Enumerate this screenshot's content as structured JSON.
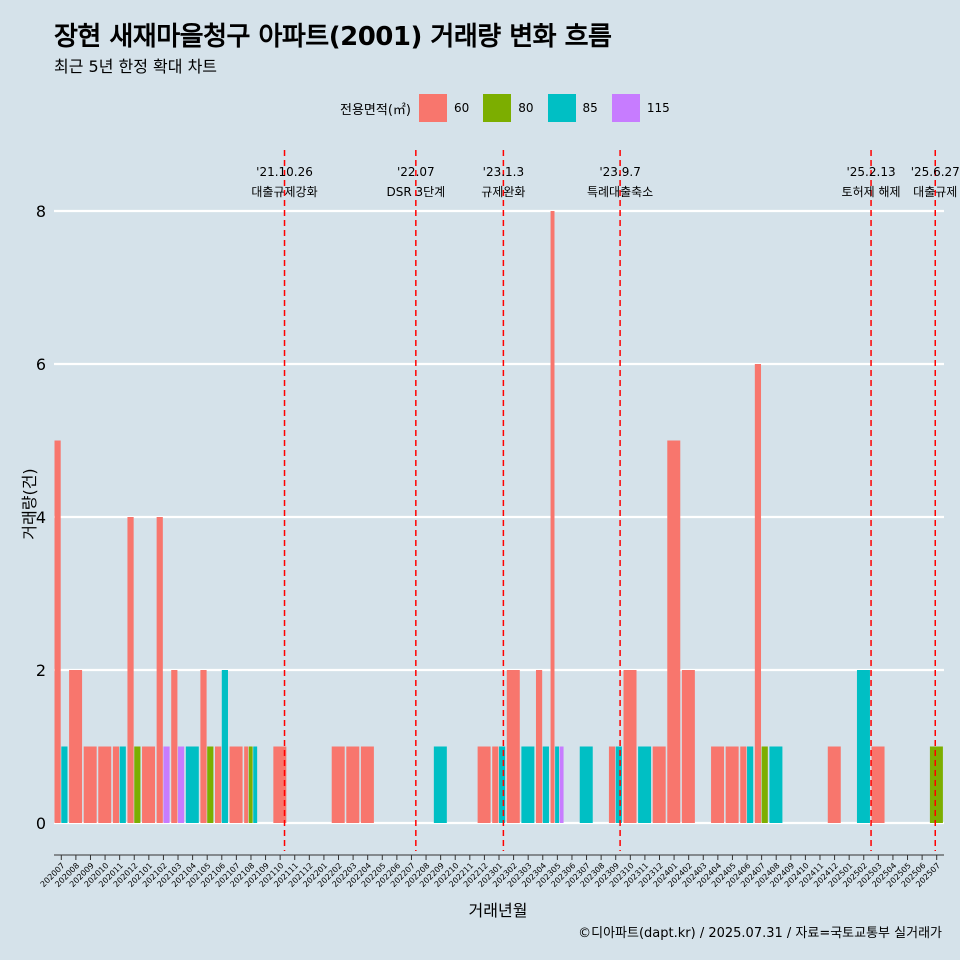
{
  "header": {
    "title": "장현 새재마을청구 아파트(2001) 거래량 변화 흐름",
    "subtitle": "최근 5년 한정 확대 차트"
  },
  "legend": {
    "title": "전용면적(㎡)",
    "items": [
      {
        "label": "60",
        "color": "#f8766d"
      },
      {
        "label": "80",
        "color": "#7cae00"
      },
      {
        "label": "85",
        "color": "#00bfc4"
      },
      {
        "label": "115",
        "color": "#c77cff"
      }
    ]
  },
  "axes": {
    "xlabel": "거래년월",
    "ylabel": "거래량(건)"
  },
  "caption": "©디아파트(dapt.kr) / 2025.07.31 / 자료=국토교통부 실거래가",
  "chart_data": {
    "type": "bar",
    "title": "장현 새재마을청구 아파트(2001) 거래량 변화 흐름",
    "xlabel": "거래년월",
    "ylabel": "거래량(건)",
    "ylim": [
      -0.35,
      8.8
    ],
    "yticks": [
      0,
      2,
      4,
      6,
      8
    ],
    "categories": [
      "202007",
      "202008",
      "202009",
      "202010",
      "202011",
      "202012",
      "202101",
      "202102",
      "202103",
      "202104",
      "202105",
      "202106",
      "202107",
      "202108",
      "202109",
      "202110",
      "202111",
      "202112",
      "202201",
      "202202",
      "202203",
      "202204",
      "202205",
      "202206",
      "202207",
      "202208",
      "202209",
      "202210",
      "202211",
      "202212",
      "202301",
      "202302",
      "202303",
      "202304",
      "202305",
      "202306",
      "202307",
      "202308",
      "202309",
      "202310",
      "202311",
      "202312",
      "202401",
      "202402",
      "202403",
      "202404",
      "202405",
      "202406",
      "202407",
      "202408",
      "202409",
      "202410",
      "202411",
      "202412",
      "202501",
      "202502",
      "202503",
      "202504",
      "202505",
      "202506",
      "202507"
    ],
    "series": [
      {
        "name": "60",
        "color": "#f8766d",
        "values": [
          5,
          2,
          1,
          1,
          1,
          4,
          1,
          4,
          2,
          0,
          2,
          1,
          1,
          1,
          0,
          1,
          0,
          0,
          0,
          1,
          1,
          1,
          0,
          0,
          0,
          0,
          0,
          0,
          0,
          1,
          1,
          2,
          0,
          2,
          8,
          0,
          0,
          0,
          1,
          2,
          0,
          1,
          5,
          2,
          0,
          1,
          1,
          1,
          6,
          0,
          0,
          0,
          0,
          1,
          0,
          0,
          1,
          0,
          0,
          0,
          0
        ]
      },
      {
        "name": "80",
        "color": "#7cae00",
        "values": [
          0,
          0,
          0,
          0,
          0,
          1,
          0,
          0,
          0,
          0,
          1,
          0,
          0,
          1,
          0,
          0,
          0,
          0,
          0,
          0,
          0,
          0,
          0,
          0,
          0,
          0,
          0,
          0,
          0,
          0,
          0,
          0,
          0,
          0,
          0,
          0,
          0,
          0,
          0,
          0,
          0,
          0,
          0,
          0,
          0,
          0,
          0,
          0,
          1,
          0,
          0,
          0,
          0,
          0,
          0,
          0,
          0,
          0,
          0,
          0,
          1
        ]
      },
      {
        "name": "85",
        "color": "#00bfc4",
        "values": [
          1,
          0,
          0,
          0,
          1,
          0,
          0,
          0,
          0,
          1,
          0,
          2,
          0,
          1,
          0,
          0,
          0,
          0,
          0,
          0,
          0,
          0,
          0,
          0,
          0,
          0,
          1,
          0,
          0,
          0,
          1,
          0,
          1,
          1,
          1,
          0,
          1,
          0,
          1,
          0,
          1,
          0,
          0,
          0,
          0,
          0,
          0,
          1,
          0,
          1,
          0,
          0,
          0,
          0,
          0,
          2,
          0,
          0,
          0,
          0,
          0
        ]
      },
      {
        "name": "115",
        "color": "#c77cff",
        "values": [
          0,
          0,
          0,
          0,
          0,
          0,
          0,
          1,
          1,
          0,
          0,
          0,
          0,
          0,
          0,
          0,
          0,
          0,
          0,
          0,
          0,
          0,
          0,
          0,
          0,
          0,
          0,
          0,
          0,
          0,
          0,
          0,
          0,
          0,
          1,
          0,
          0,
          0,
          0,
          0,
          0,
          0,
          0,
          0,
          0,
          0,
          0,
          0,
          0,
          0,
          0,
          0,
          0,
          0,
          0,
          0,
          0,
          0,
          0,
          0,
          0
        ]
      }
    ],
    "events": [
      {
        "date": "'21.10.26",
        "label": "대출규제강화",
        "index": 15.3
      },
      {
        "date": "'22.07",
        "label": "DSR 3단계",
        "index": 24.3
      },
      {
        "date": "'23.1.3",
        "label": "규제완화",
        "index": 30.3
      },
      {
        "date": "'23.9.7",
        "label": "특례대출축소",
        "index": 38.3
      },
      {
        "date": "'25.2.13",
        "label": "토허제 해제",
        "index": 55.5
      },
      {
        "date": "'25.6.27",
        "label": "대출규제",
        "index": 59.9
      }
    ]
  }
}
